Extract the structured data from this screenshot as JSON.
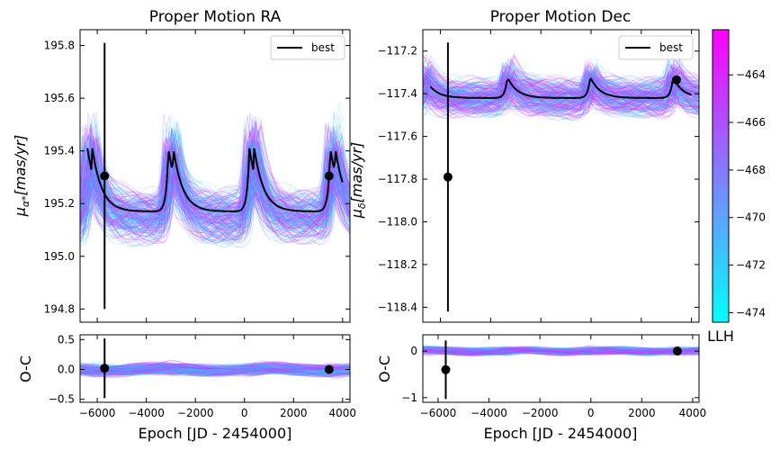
{
  "chart_data": [
    {
      "id": "ra",
      "type": "line",
      "title": "Proper Motion RA",
      "ylabel_main": "μ",
      "ylabel_sub": "α*",
      "ylabel_rest": "[mas/yr]",
      "xlim": [
        -6700,
        4300
      ],
      "ylim": [
        194.75,
        195.86
      ],
      "yticks": [
        194.8,
        195.0,
        195.2,
        195.4,
        195.6,
        195.8
      ],
      "ytick_labels": [
        "194.8",
        "195.0",
        "195.2",
        "195.4",
        "195.6",
        "195.8"
      ],
      "legend": [
        "best"
      ],
      "best_baseline": 195.17,
      "best_peak": 195.41,
      "peaks_x": [
        -3100,
        200,
        3700
      ],
      "period": 3300,
      "measurements": [
        {
          "x": -5700,
          "y": 195.305,
          "yerr": 0.505
        },
        {
          "x": 3450,
          "y": 195.305,
          "yerr": 0
        }
      ]
    },
    {
      "id": "dec",
      "type": "line",
      "title": "Proper Motion Dec",
      "ylabel_main": "μ",
      "ylabel_sub": "δ",
      "ylabel_rest": "[mas/yr]",
      "xlim": [
        -6700,
        4300
      ],
      "ylim": [
        -118.47,
        -117.1
      ],
      "yticks": [
        -118.4,
        -118.2,
        -118.0,
        -117.8,
        -117.6,
        -117.4,
        -117.2
      ],
      "ytick_labels": [
        "−118.4",
        "−118.2",
        "−118.0",
        "−117.8",
        "−117.6",
        "−117.4",
        "−117.2"
      ],
      "legend": [
        "best"
      ],
      "best_baseline": -117.42,
      "best_peak": -117.33,
      "peaks_x": [
        -3350,
        -50,
        3300
      ],
      "period": 3300,
      "measurements": [
        {
          "x": -5700,
          "y": -117.79,
          "yerr": 0.63
        },
        {
          "x": 3400,
          "y": -117.335,
          "yerr": 0
        }
      ]
    },
    {
      "id": "ra_oc",
      "type": "line",
      "ylabel": "O-C",
      "xlabel": "Epoch [JD - 2454000]",
      "xlim": [
        -6700,
        4300
      ],
      "ylim": [
        -0.55,
        0.58
      ],
      "yticks": [
        -0.5,
        0.0,
        0.5
      ],
      "ytick_labels": [
        "−0.5",
        "0.0",
        "0.5"
      ],
      "xticks": [
        -6000,
        -4000,
        -2000,
        0,
        2000,
        4000
      ],
      "xtick_labels": [
        "−6000",
        "−4000",
        "−2000",
        "0",
        "2000",
        "4000"
      ],
      "measurements": [
        {
          "x": -5700,
          "y": 0.02,
          "yerr": 0.5
        },
        {
          "x": 3450,
          "y": 0.0,
          "yerr": 0
        }
      ]
    },
    {
      "id": "dec_oc",
      "type": "line",
      "ylabel": "O-C",
      "xlabel": "Epoch [JD - 2454000]",
      "xlim": [
        -6600,
        4250
      ],
      "ylim": [
        -1.1,
        0.35
      ],
      "yticks": [
        -1,
        0
      ],
      "ytick_labels": [
        "−1",
        "0"
      ],
      "xticks": [
        -6000,
        -4000,
        -2000,
        0,
        2000,
        4000
      ],
      "xtick_labels": [
        "−6000",
        "−4000",
        "−2000",
        "0",
        "2000",
        "4000"
      ],
      "measurements": [
        {
          "x": -5700,
          "y": -0.4,
          "yerr": 0.63
        },
        {
          "x": 3400,
          "y": 0.0,
          "yerr": 0
        }
      ]
    },
    {
      "id": "colorbar",
      "type": "heatmap",
      "label": "LLH",
      "range": [
        -474.4,
        -462.1
      ],
      "ticks": [
        -474,
        -472,
        -470,
        -468,
        -466,
        -464
      ],
      "tick_labels": [
        "−474",
        "−472",
        "−470",
        "−468",
        "−466",
        "−464"
      ],
      "color_low": "#00ffff",
      "color_high": "#ff00ff"
    }
  ]
}
